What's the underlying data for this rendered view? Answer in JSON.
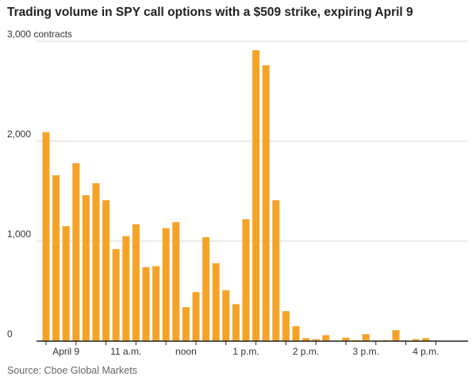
{
  "chart_data": {
    "type": "bar",
    "title": "Trading volume in SPY call options with a $509 strike, expiring April 9",
    "ylabel": "contracts",
    "source": "Source: Cboe Global Markets",
    "ylim": [
      0,
      3000
    ],
    "y_ticks": [
      {
        "value": 3000,
        "label": "3,000 contracts"
      },
      {
        "value": 2000,
        "label": "2,000"
      },
      {
        "value": 1000,
        "label": "1,000"
      },
      {
        "value": 0,
        "label": "0"
      }
    ],
    "x_ticks": [
      {
        "index": 2,
        "label": "April 9"
      },
      {
        "index": 8,
        "label": "11 a.m."
      },
      {
        "index": 14,
        "label": "noon"
      },
      {
        "index": 20,
        "label": "1 p.m."
      },
      {
        "index": 26,
        "label": "2 p.m."
      },
      {
        "index": 32,
        "label": "3 p.m."
      },
      {
        "index": 38,
        "label": "4 p.m."
      }
    ],
    "bar_color": "#f5a327",
    "grid": true,
    "values": [
      2090,
      1660,
      1150,
      1780,
      1460,
      1580,
      1410,
      920,
      1050,
      1170,
      740,
      750,
      1130,
      1190,
      340,
      490,
      1040,
      780,
      510,
      370,
      1220,
      2910,
      2760,
      1410,
      300,
      150,
      30,
      20,
      60,
      5,
      35,
      10,
      70,
      5,
      10,
      110,
      5,
      20,
      30,
      5
    ]
  }
}
